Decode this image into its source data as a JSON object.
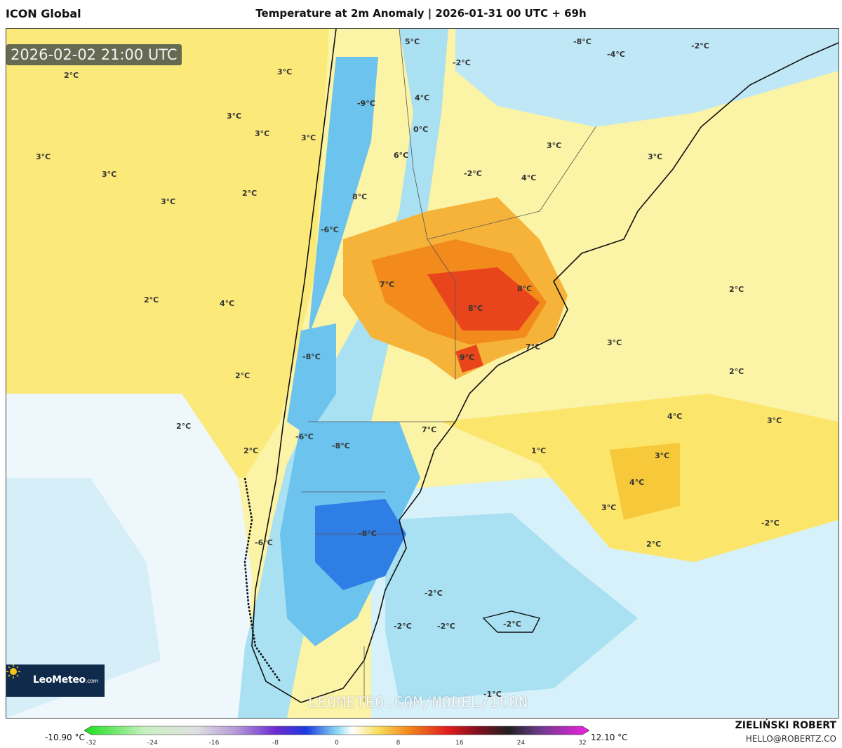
{
  "header": {
    "model_name": "ICON Global",
    "title": "Temperature at 2m Anomaly | 2026-01-31 00 UTC + 69h"
  },
  "map": {
    "timestamp": "2026-02-02 21:00 UTC",
    "watermark": "LEOMETEO.COM/MODEL/ICON",
    "logo_text": "LeoMeteo",
    "logo_suffix": ".com",
    "labels": [
      "2°C",
      "3°C",
      "3°C",
      "3°C",
      "3°C",
      "3°C",
      "3°C",
      "2°C",
      "3°C",
      "4°C",
      "2°C",
      "2°C",
      "2°C",
      "2°C",
      "5°C",
      "4°C",
      "0°C",
      "-9°C",
      "6°C",
      "8°C",
      "-6°C",
      "-2°C",
      "-2°C",
      "4°C",
      "3°C",
      "3°C",
      "-8°C",
      "-4°C",
      "-2°C",
      "7°C",
      "8°C",
      "8°C",
      "7°C",
      "9°C",
      "-8°C",
      "2°C",
      "3°C",
      "2°C",
      "-6°C",
      "-8°C",
      "7°C",
      "1°C",
      "4°C",
      "3°C",
      "4°C",
      "3°C",
      "3°C",
      "-2°C",
      "2°C",
      "-8°C",
      "-6°C",
      "-2°C",
      "-2°C",
      "-2°C",
      "-2°C",
      "-1°C"
    ],
    "colors": {
      "warm": "#fbe97a",
      "hot": "#f28a1c",
      "very_hot": "#e8451c",
      "cold": "#a9e1f3",
      "very_cold": "#2f7ee6"
    }
  },
  "colorbar": {
    "min_label": "-10.90 °C",
    "max_label": "12.10 °C",
    "ticks": [
      "-32",
      "-24",
      "-16",
      "-8",
      "0",
      "8",
      "16",
      "24",
      "32"
    ],
    "tick_values": [
      -32,
      -24,
      -16,
      -8,
      0,
      8,
      16,
      24,
      32
    ]
  },
  "credits": {
    "name": "ZIELIŃSKI ROBERT",
    "email": "HELLO@ROBERTZ.CO"
  }
}
